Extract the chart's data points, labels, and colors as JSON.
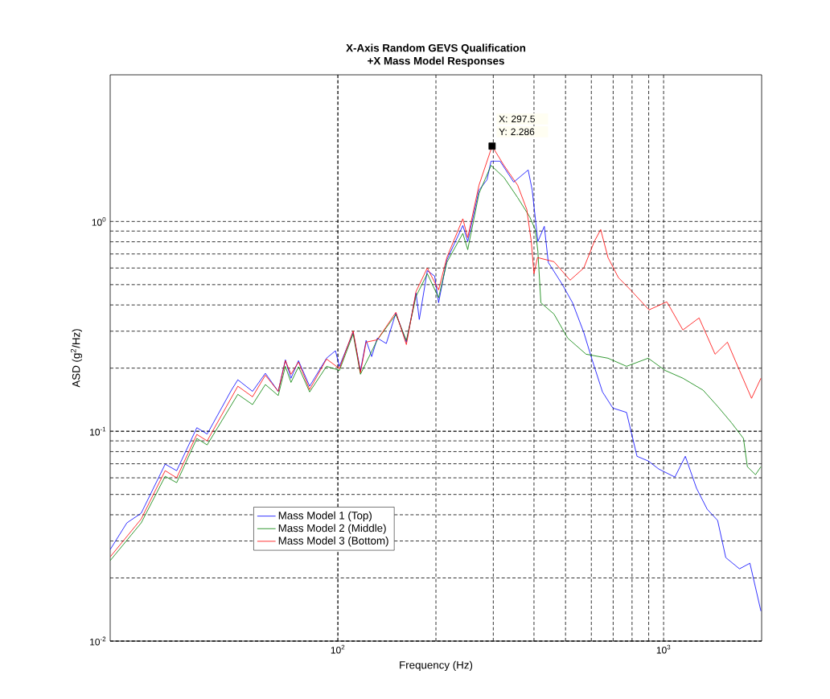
{
  "chart_data": {
    "type": "line",
    "title": "X-Axis Random GEVS Qualification",
    "subtitle": "+X Mass Model Responses",
    "xlabel": "Frequency (Hz)",
    "ylabel": "ASD (g$^{2}$/Hz)",
    "log": "xy",
    "grid": true,
    "legend": "bottom left",
    "line_style": "solid",
    "marker": "none",
    "xlim": [
      20,
      2000
    ],
    "ylim": [
      0.01,
      5
    ],
    "xticks": [
      {
        "value": 100,
        "label": "10$^{2}$"
      },
      {
        "value": 1000,
        "label": "10$^{3}$"
      }
    ],
    "yticks": [
      {
        "value": 0.01,
        "label": "10$^{-2}$"
      },
      {
        "value": 0.1,
        "label": "10$^{-1}$"
      },
      {
        "value": 1,
        "label": "10$^{0}$"
      }
    ],
    "annotations": [
      {
        "text": "X: 297.5",
        "x": 297.5,
        "y": 2.286
      },
      {
        "text": "Y: 2.286",
        "x": 297.5,
        "y": 2.286
      }
    ],
    "series": [
      {
        "name": "Mass Model 1 (Top)",
        "color": "#0000ff",
        "x": [
          20,
          22.5,
          24.9,
          29.5,
          32.0,
          36.9,
          39.7,
          47.1,
          49.3,
          54.7,
          59.9,
          65.6,
          69.0,
          71.8,
          75.7,
          81.9,
          92.3,
          98.3,
          101.1,
          111.4,
          117.3,
          122.1,
          127.0,
          132.2,
          140.8,
          150.7,
          162.3,
          173.8,
          177.8,
          188.2,
          198.2,
          203.8,
          216.0,
          241.9,
          250.4,
          271.2,
          287.0,
          295.3,
          314.6,
          346.6,
          383.9,
          395.1,
          411.1,
          430.3,
          442.6,
          487.8,
          525.2,
          568.7,
          602.3,
          649.2,
          698.6,
          769.6,
          828.6,
          896.9,
          966.1,
          1083,
          1166,
          1262,
          1361,
          1465,
          1552,
          1710,
          1841,
          1990
        ],
        "values": [
          0.0273,
          0.0366,
          0.0407,
          0.0697,
          0.0649,
          0.104,
          0.097,
          0.157,
          0.176,
          0.155,
          0.189,
          0.155,
          0.219,
          0.179,
          0.217,
          0.164,
          0.223,
          0.242,
          0.204,
          0.296,
          0.194,
          0.271,
          0.227,
          0.278,
          0.262,
          0.366,
          0.266,
          0.456,
          0.341,
          0.583,
          0.549,
          0.41,
          0.655,
          0.957,
          0.802,
          1.41,
          1.58,
          1.94,
          1.94,
          1.54,
          1.76,
          1.41,
          0.802,
          0.948,
          0.638,
          0.503,
          0.41,
          0.296,
          0.221,
          0.154,
          0.129,
          0.123,
          0.076,
          0.0722,
          0.0661,
          0.0605,
          0.076,
          0.0535,
          0.0425,
          0.0376,
          0.025,
          0.0221,
          0.0235,
          0.0139
        ]
      },
      {
        "name": "Mass Model 2 (Middle)",
        "color": "#008000",
        "x": [
          20,
          24.9,
          29.5,
          32.0,
          36.9,
          39.7,
          49.3,
          54.7,
          59.9,
          65.6,
          69.0,
          71.8,
          75.7,
          81.9,
          92.3,
          101.1,
          111.4,
          117.3,
          132.2,
          150.7,
          162.3,
          173.8,
          188.2,
          203.8,
          216.0,
          241.9,
          250.4,
          271.2,
          295.3,
          323.6,
          356.3,
          388.4,
          403.6,
          411.1,
          420.0,
          460.7,
          507.6,
          578.1,
          675.1,
          769.6,
          896.9,
          1011,
          1146,
          1322,
          1465,
          1614,
          1759,
          1808,
          1915,
          1990
        ],
        "values": [
          0.0242,
          0.0366,
          0.061,
          0.0569,
          0.0924,
          0.0861,
          0.15,
          0.134,
          0.167,
          0.148,
          0.204,
          0.171,
          0.203,
          0.154,
          0.204,
          0.195,
          0.291,
          0.187,
          0.273,
          0.36,
          0.271,
          0.44,
          0.564,
          0.433,
          0.638,
          0.877,
          0.734,
          1.36,
          1.85,
          1.62,
          1.3,
          1.05,
          0.915,
          0.722,
          0.41,
          0.362,
          0.278,
          0.233,
          0.223,
          0.204,
          0.223,
          0.195,
          0.179,
          0.157,
          0.1315,
          0.11,
          0.0924,
          0.0678,
          0.0621,
          0.0678
        ]
      },
      {
        "type": "scatter",
        "marker": "square",
        "color": "#000000",
        "x": [
          297.5
        ],
        "values": [
          2.286
        ]
      },
      {
        "name": "Mass Model 3 (Bottom)",
        "color": "#ff0000",
        "x": [
          20,
          24.9,
          29.5,
          32.0,
          36.9,
          39.7,
          49.3,
          54.7,
          59.9,
          65.6,
          69.0,
          71.8,
          75.7,
          81.9,
          92.3,
          101.1,
          111.4,
          117.3,
          122.1,
          132.2,
          150.7,
          162.3,
          173.8,
          188.2,
          203.8,
          216.0,
          241.9,
          250.4,
          271.2,
          297.5,
          323.6,
          356.3,
          380.2,
          392.5,
          400.0,
          410.0,
          460.7,
          516.4,
          568.7,
          612.6,
          641.0,
          675.1,
          726.6,
          791.5,
          902,
          1023,
          1146,
          1285,
          1439,
          1570,
          1710,
          1862,
          1990
        ],
        "values": [
          0.0252,
          0.0382,
          0.0649,
          0.06,
          0.0966,
          0.09,
          0.164,
          0.146,
          0.185,
          0.155,
          0.217,
          0.187,
          0.214,
          0.158,
          0.221,
          0.199,
          0.301,
          0.19,
          0.266,
          0.273,
          0.369,
          0.259,
          0.464,
          0.6,
          0.472,
          0.673,
          1.03,
          0.838,
          1.49,
          2.286,
          1.85,
          1.49,
          1.14,
          0.802,
          0.564,
          0.673,
          0.643,
          0.525,
          0.6,
          0.802,
          0.915,
          0.673,
          0.54,
          0.472,
          0.379,
          0.414,
          0.304,
          0.347,
          0.233,
          0.266,
          0.195,
          0.1436,
          0.179
        ]
      }
    ]
  }
}
